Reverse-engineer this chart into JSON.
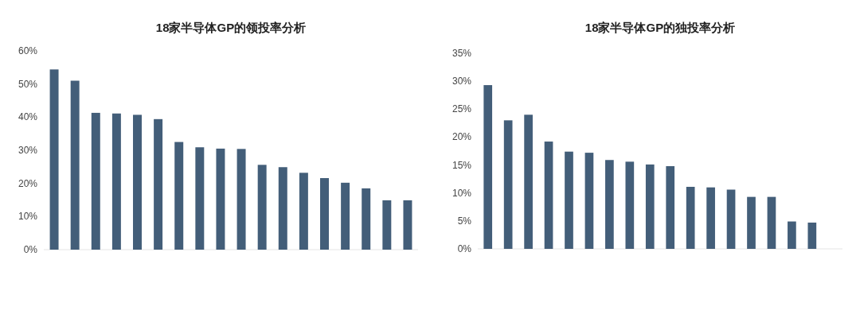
{
  "chart_data": [
    {
      "type": "bar",
      "title": "18家半导体GP的领投率分析",
      "categories": [
        null,
        null,
        null,
        null,
        null,
        null,
        null,
        null,
        null,
        null,
        null,
        null,
        null,
        null,
        null,
        null,
        null,
        null
      ],
      "values": [
        54.4,
        51.0,
        41.3,
        41.1,
        40.7,
        39.4,
        32.5,
        30.9,
        30.5,
        30.4,
        25.6,
        24.9,
        23.2,
        21.6,
        20.2,
        18.5,
        14.9,
        14.9
      ],
      "color": "#435e79",
      "ylim": [
        0,
        60
      ],
      "yticks": [
        {
          "value": 0,
          "label": "0%"
        },
        {
          "value": 10,
          "label": "10%"
        },
        {
          "value": 20,
          "label": "20%"
        },
        {
          "value": 30,
          "label": "30%"
        },
        {
          "value": 40,
          "label": "40%"
        },
        {
          "value": 50,
          "label": "50%"
        },
        {
          "value": 60,
          "label": "60%"
        }
      ],
      "grid": false,
      "tick_labels": "y"
    },
    {
      "type": "bar",
      "title": "18家半导体GP的独投率分析",
      "categories": [
        null,
        null,
        null,
        null,
        null,
        null,
        null,
        null,
        null,
        null,
        null,
        null,
        null,
        null,
        null,
        null,
        null,
        null
      ],
      "values": [
        29.3,
        23.0,
        24.0,
        19.2,
        17.4,
        17.2,
        15.9,
        15.6,
        15.1,
        14.8,
        11.1,
        11.0,
        10.6,
        9.3,
        9.3,
        4.9,
        4.7,
        0
      ],
      "color": "#435e79",
      "ylim": [
        0,
        35
      ],
      "yticks": [
        {
          "value": 0,
          "label": "0%"
        },
        {
          "value": 5,
          "label": "5%"
        },
        {
          "value": 10,
          "label": "10%"
        },
        {
          "value": 15,
          "label": "15%"
        },
        {
          "value": 20,
          "label": "20%"
        },
        {
          "value": 25,
          "label": "25%"
        },
        {
          "value": 30,
          "label": "30%"
        },
        {
          "value": 35,
          "label": "35%"
        }
      ],
      "grid": false,
      "tick_labels": "y"
    }
  ]
}
